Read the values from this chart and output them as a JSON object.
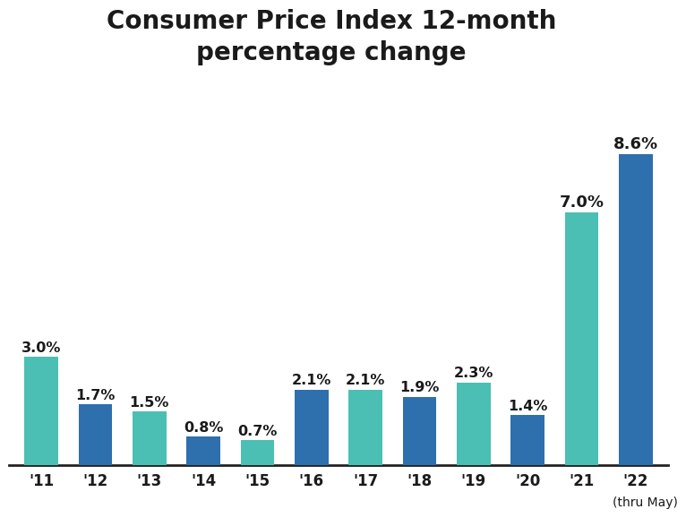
{
  "title": "Consumer Price Index 12-month\npercentage change",
  "categories": [
    "'11",
    "'12",
    "'13",
    "'14",
    "'15",
    "'16",
    "'17",
    "'18",
    "'19",
    "'20",
    "'21",
    "'22"
  ],
  "values": [
    3.0,
    1.7,
    1.5,
    0.8,
    0.7,
    2.1,
    2.1,
    1.9,
    2.3,
    1.4,
    7.0,
    8.6
  ],
  "bar_colors": [
    "#4bbfb4",
    "#2e6fad",
    "#4bbfb4",
    "#2e6fad",
    "#4bbfb4",
    "#2e6fad",
    "#4bbfb4",
    "#2e6fad",
    "#4bbfb4",
    "#2e6fad",
    "#4bbfb4",
    "#2e6fad"
  ],
  "subtitle_note": "(thru May)",
  "label_fontsize": 11.5,
  "label_fontsize_large": 13,
  "title_fontsize": 20,
  "background_color": "#ffffff",
  "ylim": [
    0,
    9.8
  ],
  "bar_width": 0.62
}
